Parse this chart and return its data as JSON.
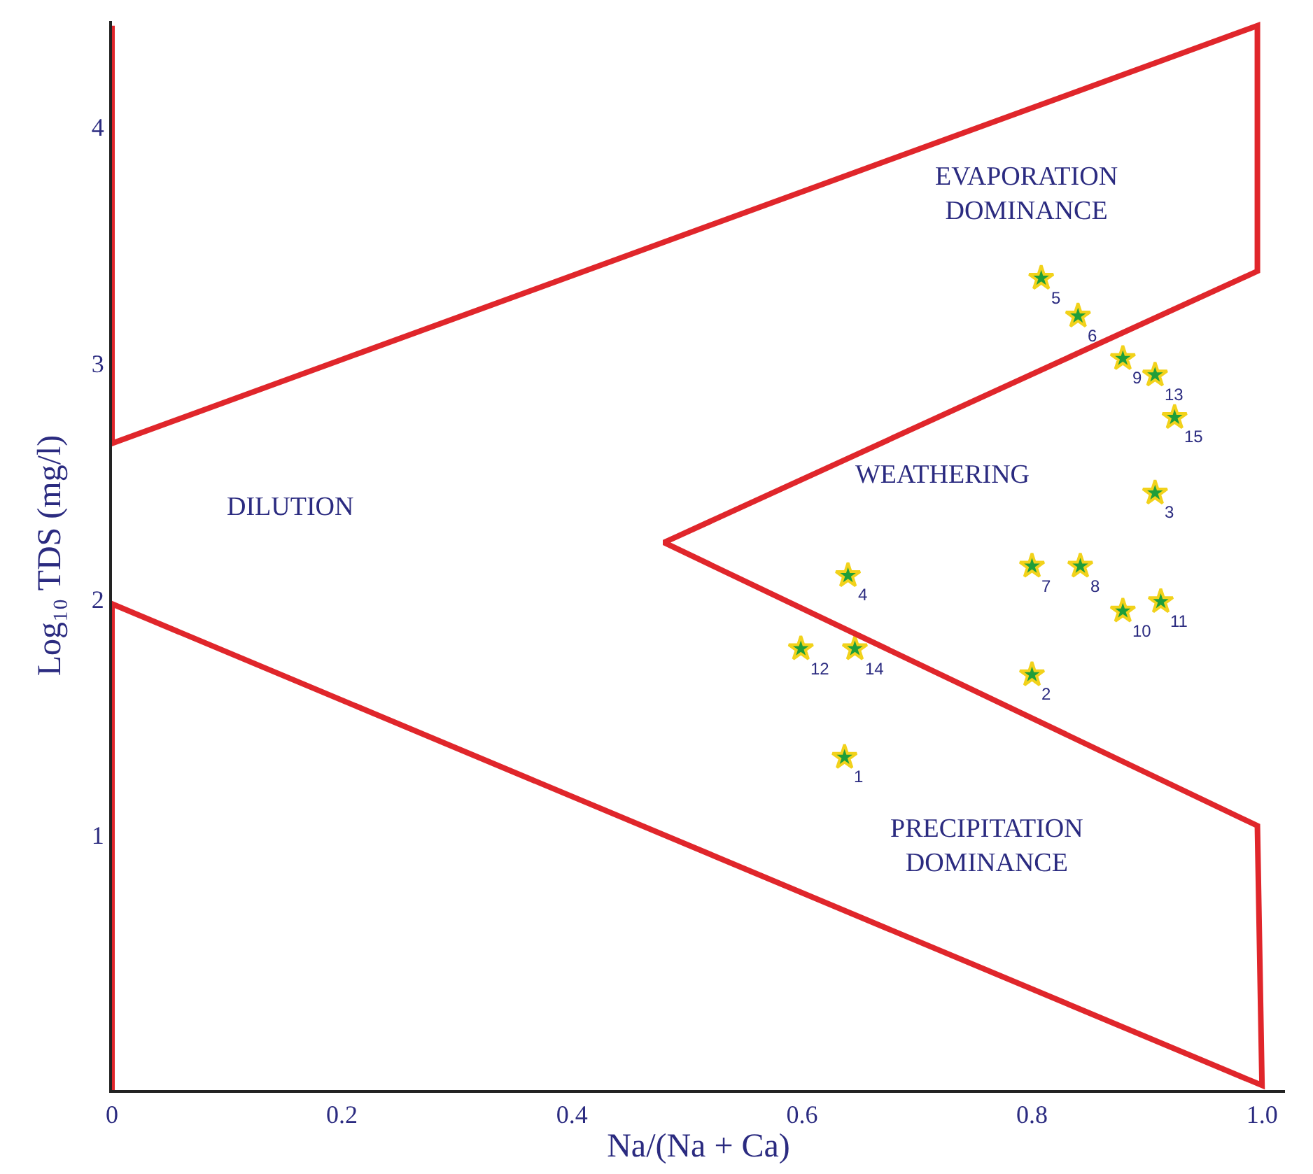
{
  "chart_data": {
    "type": "scatter",
    "xlabel": "Na/(Na + Ca)",
    "ylabel": "Log₁₀ TDS (mg/l)",
    "xlim": [
      0,
      1.02
    ],
    "ylim": [
      -0.08,
      4.45
    ],
    "xticks": [
      0,
      0.2,
      0.4,
      0.6,
      0.8,
      {
        "value": 1,
        "label": "1.0"
      }
    ],
    "yticks": [
      1,
      2,
      3,
      4
    ],
    "marker": "star",
    "series": [
      {
        "color": "#1f9e3a",
        "x": [
          0.637,
          0.8,
          0.907,
          0.64,
          0.808,
          0.84,
          0.8,
          0.842,
          0.879,
          0.879,
          0.912,
          0.599,
          0.907,
          0.646,
          0.924
        ],
        "values": [
          1.33,
          1.68,
          2.45,
          2.1,
          3.36,
          3.2,
          2.14,
          2.14,
          3.02,
          1.95,
          1.99,
          1.79,
          2.95,
          1.79,
          2.77
        ]
      },
      {
        "type": "line",
        "color": "#e0262b",
        "marker": "none",
        "x": [
          0,
          0,
          0.996,
          0.996,
          0.48,
          0.996,
          1.0,
          0,
          0
        ],
        "values": [
          4.43,
          2.66,
          4.43,
          3.39,
          2.24,
          1.04,
          -0.06,
          1.98,
          -0.08
        ]
      }
    ],
    "annotations": [
      {
        "text": "1",
        "x": 0.637,
        "y": 1.33
      },
      {
        "text": "2",
        "x": 0.8,
        "y": 1.68
      },
      {
        "text": "3",
        "x": 0.907,
        "y": 2.45
      },
      {
        "text": "4",
        "x": 0.64,
        "y": 2.1
      },
      {
        "text": "5",
        "x": 0.808,
        "y": 3.36
      },
      {
        "text": "6",
        "x": 0.84,
        "y": 3.2
      },
      {
        "text": "7",
        "x": 0.8,
        "y": 2.14
      },
      {
        "text": "8",
        "x": 0.842,
        "y": 2.14
      },
      {
        "text": "9",
        "x": 0.879,
        "y": 3.02
      },
      {
        "text": "10",
        "x": 0.879,
        "y": 1.95
      },
      {
        "text": "11",
        "x": 0.912,
        "y": 1.99
      },
      {
        "text": "12",
        "x": 0.599,
        "y": 1.79
      },
      {
        "text": "13",
        "x": 0.907,
        "y": 2.95
      },
      {
        "text": "14",
        "x": 0.646,
        "y": 1.79
      },
      {
        "text": "15",
        "x": 0.924,
        "y": 2.77
      },
      "EVAPORATION\nDOMINANCE",
      "WEATHERING",
      "DILUTION",
      "PRECIPITATION\nDOMINANCE"
    ]
  }
}
